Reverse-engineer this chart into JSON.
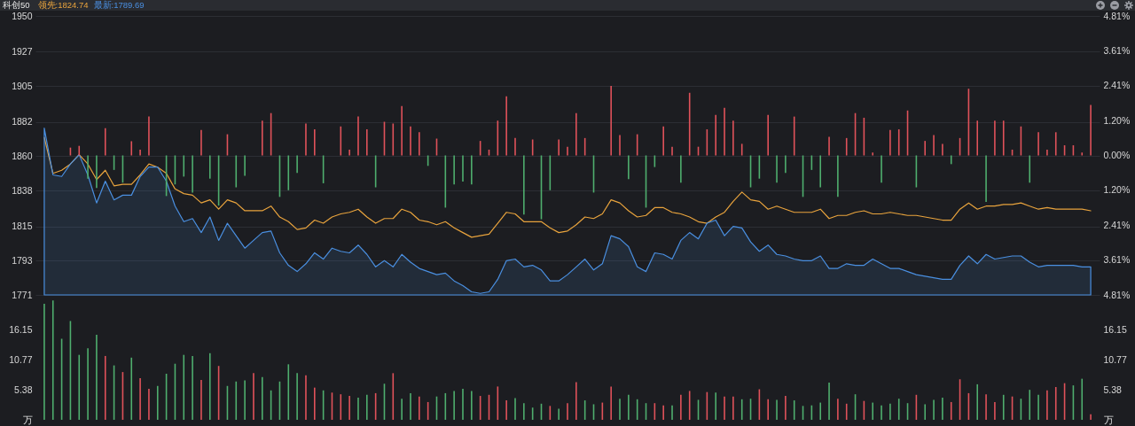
{
  "chart_data": [
    {
      "type": "line",
      "title": "科创50",
      "annotations": [
        "领先:1824.74",
        "最新:1789.69"
      ],
      "categories": [
        null,
        null,
        null,
        null,
        null,
        null,
        null,
        null,
        null,
        null,
        null,
        null,
        null,
        null,
        null,
        null,
        null,
        null,
        null,
        null,
        null,
        null,
        null,
        null,
        null,
        null,
        null,
        null,
        null,
        null,
        null,
        null,
        null,
        null,
        null,
        null,
        null,
        null,
        null,
        null,
        null,
        null,
        null,
        null,
        null,
        null,
        null,
        null,
        null,
        null,
        null,
        null,
        null,
        null,
        null,
        null,
        null,
        null,
        null,
        null,
        null,
        null,
        null,
        null,
        null,
        null,
        null,
        null,
        null,
        null,
        null,
        null,
        null,
        null,
        null,
        null,
        null,
        null,
        null,
        null,
        null,
        null,
        null,
        null,
        null,
        null,
        null,
        null,
        null,
        null,
        null,
        null,
        null,
        null,
        null,
        null,
        null,
        null,
        null,
        null,
        null,
        null,
        null,
        null,
        null,
        null,
        null,
        null,
        null,
        null,
        null,
        null,
        null,
        null,
        null,
        null,
        null,
        null,
        null,
        null,
        null
      ],
      "ylim": [
        1771,
        1950
      ],
      "yticks": [
        1771,
        1793,
        1815,
        1838,
        1860,
        1882,
        1905,
        1927,
        1950
      ],
      "y2lim": [
        -4.81,
        4.81
      ],
      "y2ticks": [
        {
          "value": -4.81,
          "label": "4.81%"
        },
        {
          "value": -3.61,
          "label": "3.61%"
        },
        {
          "value": -2.41,
          "label": "2.41%"
        },
        {
          "value": -1.2,
          "label": "1.20%"
        },
        {
          "value": 0,
          "label": "0.00%"
        },
        {
          "value": 1.2,
          "label": "1.20%"
        },
        {
          "value": 2.41,
          "label": "2.41%"
        },
        {
          "value": 3.61,
          "label": "3.61%"
        },
        {
          "value": 4.81,
          "label": "4.81%"
        }
      ],
      "grid": "y",
      "series": [
        {
          "color": "#e8a33d",
          "values": [
            1872,
            1849,
            1851,
            1855,
            1861,
            1855,
            1845,
            1851,
            1841,
            1842,
            1842,
            1848,
            1855,
            1853,
            1849,
            1839,
            1836,
            1835,
            1830,
            1832,
            1826,
            1832,
            1830,
            1825,
            1825,
            1825,
            1828,
            1821,
            1818,
            1813,
            1814,
            1819,
            1817,
            1821,
            1823,
            1824,
            1826,
            1821,
            1817,
            1820,
            1820,
            1826,
            1824,
            1819,
            1818,
            1816,
            1818,
            1814,
            1811,
            1808,
            1809,
            1810,
            1817,
            1824,
            1823,
            1818,
            1818,
            1818,
            1814,
            1811,
            1812,
            1816,
            1821,
            1820,
            1823,
            1832,
            1830,
            1825,
            1821,
            1822,
            1827,
            1827,
            1824,
            1823,
            1821,
            1818,
            1817,
            1821,
            1824,
            1831,
            1837,
            1832,
            1831,
            1826,
            1828,
            1826,
            1824,
            1824,
            1824,
            1826,
            1820,
            1822,
            1822,
            1824,
            1825,
            1823,
            1823,
            1824,
            1823,
            1822,
            1822,
            1821,
            1820,
            1819,
            1819,
            1826,
            1830,
            1826,
            1828,
            1828,
            1829,
            1829,
            1830,
            1828,
            1826,
            1827,
            1826,
            1826,
            1826,
            1826,
            1825
          ]
        },
        {
          "type": "area",
          "color": "#4a8fe0",
          "values": [
            1878,
            1848,
            1847,
            1855,
            1861,
            1848,
            1830,
            1844,
            1832,
            1835,
            1835,
            1847,
            1853,
            1853,
            1844,
            1828,
            1818,
            1820,
            1811,
            1821,
            1806,
            1817,
            1809,
            1801,
            1806,
            1811,
            1812,
            1798,
            1790,
            1786,
            1791,
            1798,
            1794,
            1801,
            1799,
            1798,
            1803,
            1797,
            1789,
            1793,
            1789,
            1797,
            1792,
            1788,
            1786,
            1784,
            1785,
            1780,
            1777,
            1773,
            1772,
            1773,
            1781,
            1793,
            1794,
            1789,
            1790,
            1787,
            1780,
            1780,
            1784,
            1789,
            1794,
            1787,
            1791,
            1809,
            1807,
            1802,
            1789,
            1786,
            1798,
            1797,
            1794,
            1806,
            1811,
            1807,
            1817,
            1819,
            1809,
            1815,
            1814,
            1805,
            1799,
            1803,
            1797,
            1796,
            1794,
            1793,
            1793,
            1796,
            1788,
            1788,
            1791,
            1790,
            1790,
            1794,
            1791,
            1788,
            1788,
            1786,
            1784,
            1783,
            1782,
            1781,
            1781,
            1790,
            1796,
            1791,
            1797,
            1794,
            1795,
            1796,
            1796,
            1792,
            1789,
            1790,
            1790,
            1790,
            1790,
            1789,
            1789
          ]
        },
        {
          "type": "bar",
          "axis": "y2",
          "color": "#e0525a",
          "values": [
            null,
            null,
            null,
            0.27,
            0.33,
            null,
            null,
            0.94,
            null,
            null,
            0.49,
            0.2,
            1.34,
            null,
            null,
            null,
            null,
            null,
            0.88,
            null,
            null,
            0.73,
            null,
            null,
            null,
            1.2,
            1.46,
            null,
            null,
            null,
            1.1,
            0.9,
            null,
            null,
            1.0,
            0.2,
            1.34,
            0.9,
            null,
            1.16,
            1.1,
            1.7,
            1.0,
            0.8,
            null,
            0.58,
            null,
            null,
            null,
            null,
            0.5,
            0.2,
            1.2,
            2.04,
            0.6,
            null,
            0.55,
            null,
            null,
            0.55,
            0.3,
            1.46,
            0.6,
            null,
            null,
            2.4,
            0.7,
            null,
            0.73,
            null,
            null,
            1.0,
            0.3,
            null,
            2.16,
            0.3,
            0.9,
            1.4,
            1.64,
            1.2,
            0.4,
            null,
            null,
            1.4,
            null,
            null,
            1.34,
            null,
            null,
            null,
            0.64,
            null,
            0.6,
            1.46,
            1.3,
            0.1,
            null,
            0.88,
            0.9,
            1.55,
            null,
            0.5,
            0.7,
            0.4,
            null,
            0.6,
            2.3,
            1.2,
            null,
            1.2,
            1.2,
            0.2,
            1.0,
            null,
            0.8,
            0.2,
            0.8,
            0.35,
            0.35,
            0.1,
            1.74
          ]
        },
        {
          "type": "bar",
          "axis": "y2",
          "color": "#4fae6e",
          "values": [
            null,
            null,
            null,
            null,
            null,
            -0.8,
            -1.12,
            null,
            -0.5,
            -0.94,
            null,
            null,
            null,
            null,
            -1.4,
            -1.0,
            -0.73,
            -1.28,
            null,
            -0.8,
            -1.73,
            null,
            -1.1,
            -0.7,
            null,
            null,
            null,
            -1.43,
            -1.2,
            -0.6,
            null,
            null,
            -0.96,
            null,
            null,
            null,
            null,
            null,
            -1.1,
            null,
            null,
            null,
            null,
            null,
            -0.36,
            null,
            -1.8,
            -1.0,
            -0.9,
            -1.0,
            null,
            null,
            null,
            null,
            null,
            -2.04,
            null,
            -2.2,
            -1.2,
            null,
            null,
            null,
            null,
            -1.28,
            null,
            null,
            null,
            -0.82,
            null,
            -1.8,
            -0.4,
            null,
            null,
            -0.94,
            null,
            null,
            null,
            null,
            null,
            null,
            null,
            -1.1,
            -0.8,
            null,
            -0.94,
            -0.6,
            null,
            -1.43,
            -0.5,
            -1.1,
            null,
            -1.43,
            null,
            null,
            null,
            null,
            -0.94,
            null,
            null,
            null,
            -1.1,
            null,
            null,
            null,
            -0.3,
            null,
            null,
            null,
            -1.6,
            null,
            null,
            null,
            null,
            -0.94,
            null,
            null,
            null,
            null,
            null,
            null,
            null
          ]
        }
      ]
    },
    {
      "type": "bar",
      "categories": [
        null,
        null,
        null,
        null,
        null,
        null,
        null,
        null,
        null,
        null,
        null,
        null,
        null,
        null,
        null,
        null,
        null,
        null,
        null,
        null,
        null,
        null,
        null,
        null,
        null,
        null,
        null,
        null,
        null,
        null,
        null,
        null,
        null,
        null,
        null,
        null,
        null,
        null,
        null,
        null,
        null,
        null,
        null,
        null,
        null,
        null,
        null,
        null,
        null,
        null,
        null,
        null,
        null,
        null,
        null,
        null,
        null,
        null,
        null,
        null,
        null,
        null,
        null,
        null,
        null,
        null,
        null,
        null,
        null,
        null,
        null,
        null,
        null,
        null,
        null,
        null,
        null,
        null,
        null,
        null,
        null,
        null,
        null,
        null,
        null,
        null,
        null,
        null,
        null,
        null,
        null,
        null,
        null,
        null,
        null,
        null,
        null,
        null,
        null,
        null,
        null,
        null,
        null,
        null,
        null,
        null,
        null,
        null,
        null,
        null,
        null,
        null,
        null,
        null,
        null,
        null,
        null,
        null,
        null,
        null,
        null
      ],
      "ylim": [
        0,
        21.7
      ],
      "yticks": [
        {
          "value": 0,
          "label": "万"
        },
        5.38,
        10.77,
        16.15
      ],
      "y2lim": [
        0,
        21.7
      ],
      "y2ticks": [
        {
          "value": 0,
          "label": "万"
        },
        5.38,
        10.77,
        16.15
      ],
      "series": [
        {
          "color": "#e0525a",
          "values": [
            null,
            null,
            null,
            null,
            null,
            null,
            null,
            11.5,
            null,
            8.6,
            null,
            7.5,
            5.6,
            null,
            null,
            null,
            null,
            null,
            7.2,
            null,
            9.7,
            null,
            null,
            null,
            8.4,
            null,
            null,
            null,
            null,
            null,
            8.0,
            5.8,
            null,
            4.9,
            4.6,
            4.3,
            null,
            null,
            4.8,
            null,
            8.4,
            null,
            null,
            4.2,
            3.2,
            null,
            null,
            null,
            null,
            null,
            4.3,
            4.5,
            6.0,
            3.5,
            null,
            null,
            null,
            null,
            2.5,
            null,
            3.0,
            6.8,
            null,
            null,
            3.1,
            6.0,
            null,
            null,
            null,
            null,
            3.0,
            2.6,
            null,
            4.5,
            5.2,
            null,
            5.0,
            null,
            4.2,
            4.2,
            null,
            null,
            5.5,
            3.7,
            null,
            4.3,
            null,
            null,
            null,
            null,
            null,
            3.8,
            2.9,
            null,
            3.4,
            null,
            null,
            null,
            null,
            null,
            4.5,
            null,
            null,
            null,
            3.2,
            7.3,
            4.8,
            null,
            4.6,
            3.2,
            null,
            4.2,
            null,
            null,
            null,
            5.3,
            5.9,
            6.6,
            null,
            null,
            1.0
          ]
        },
        {
          "color": "#4fae6e",
          "values": [
            20.9,
            21.5,
            14.6,
            17.8,
            11.7,
            12.9,
            15.3,
            null,
            9.8,
            null,
            11.2,
            null,
            null,
            6.1,
            8.3,
            10.1,
            11.7,
            11.5,
            null,
            12.0,
            null,
            6.1,
            6.9,
            7.1,
            null,
            7.7,
            5.3,
            6.9,
            10.0,
            8.4,
            null,
            null,
            5.3,
            null,
            null,
            null,
            4.0,
            4.5,
            null,
            6.5,
            null,
            3.8,
            4.8,
            null,
            null,
            4.2,
            4.8,
            5.2,
            5.6,
            5.2,
            null,
            null,
            null,
            null,
            3.9,
            3.0,
            2.2,
            2.9,
            null,
            2.0,
            null,
            null,
            3.5,
            2.8,
            null,
            null,
            3.8,
            4.5,
            3.7,
            3.0,
            null,
            null,
            2.6,
            null,
            null,
            3.6,
            null,
            4.9,
            null,
            null,
            3.7,
            3.8,
            null,
            null,
            3.6,
            null,
            3.5,
            2.5,
            2.6,
            3.1,
            6.7,
            null,
            null,
            4.6,
            null,
            3.1,
            2.6,
            2.9,
            3.8,
            3.0,
            null,
            2.8,
            3.6,
            4.0,
            null,
            null,
            null,
            6.4,
            null,
            null,
            4.5,
            null,
            3.8,
            5.4,
            4.5,
            null,
            null,
            null,
            6.2,
            7.4,
            null
          ]
        }
      ]
    }
  ]
}
